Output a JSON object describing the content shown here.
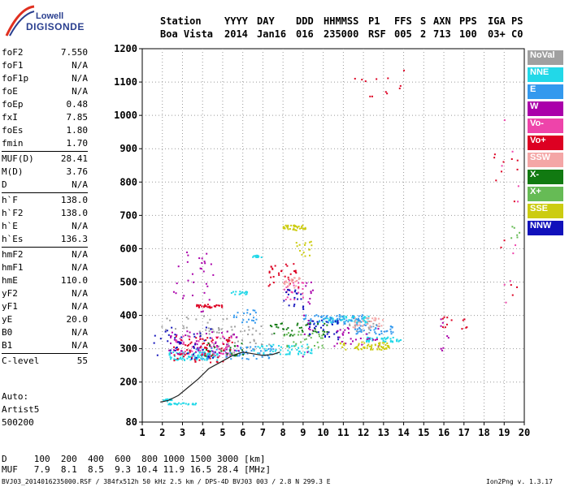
{
  "logo": {
    "line1": "Lowell",
    "line2": "DIGISONDE"
  },
  "header": {
    "cols": [
      {
        "top": "Station",
        "bottom": "Boa Vista"
      },
      {
        "top": "YYYY",
        "bottom": "2014"
      },
      {
        "top": "DAY",
        "bottom": "Jan16"
      },
      {
        "top": "DDD",
        "bottom": "016"
      },
      {
        "top": "HHMMSS",
        "bottom": "235000"
      },
      {
        "top": "P1",
        "bottom": "RSF"
      },
      {
        "top": "FFS",
        "bottom": "005"
      },
      {
        "top": "S",
        "bottom": "2"
      },
      {
        "top": "AXN",
        "bottom": "713"
      },
      {
        "top": "PPS",
        "bottom": "100"
      },
      {
        "top": "IGA",
        "bottom": "03+"
      },
      {
        "top": "PS",
        "bottom": "C0"
      }
    ]
  },
  "params": {
    "groups": [
      [
        {
          "k": "foF2",
          "v": "7.550"
        },
        {
          "k": "foF1",
          "v": "N/A"
        },
        {
          "k": "foF1p",
          "v": "N/A"
        },
        {
          "k": "foE",
          "v": "N/A"
        },
        {
          "k": "foEp",
          "v": "0.48"
        },
        {
          "k": "fxI",
          "v": "7.85"
        },
        {
          "k": "foEs",
          "v": "1.80"
        },
        {
          "k": "fmin",
          "v": "1.70"
        }
      ],
      [
        {
          "k": "MUF(D)",
          "v": "28.41"
        },
        {
          "k": "M(D)",
          "v": "3.76"
        },
        {
          "k": "D",
          "v": "N/A"
        }
      ],
      [
        {
          "k": "h`F",
          "v": "138.0"
        },
        {
          "k": "h`F2",
          "v": "138.0"
        },
        {
          "k": "h`E",
          "v": "N/A"
        },
        {
          "k": "h`Es",
          "v": "136.3"
        }
      ],
      [
        {
          "k": "hmF2",
          "v": "N/A"
        },
        {
          "k": "hmF1",
          "v": "N/A"
        },
        {
          "k": "hmE",
          "v": "110.0"
        },
        {
          "k": "yF2",
          "v": "N/A"
        },
        {
          "k": "yF1",
          "v": "N/A"
        },
        {
          "k": "yE",
          "v": "20.0"
        },
        {
          "k": "B0",
          "v": "N/A"
        },
        {
          "k": "B1",
          "v": "N/A"
        }
      ],
      [
        {
          "k": "C-level",
          "v": "55"
        }
      ]
    ]
  },
  "notes": [
    "Auto:",
    "Artist5",
    "500200"
  ],
  "bottom": {
    "d_line": "D     100  200  400  600  800 1000 1500 3000 [km]",
    "muf_line": "MUF   7.9  8.1  8.5  9.3 10.4 11.9 16.5 28.4 [MHz]"
  },
  "footer": {
    "left": "BVJ03_2014016235000.RSF / 384fx512h 50 kHz 2.5 km / DPS-4D BVJ03 003 / 2.8 N 299.3 E",
    "right": "Ion2Png v. 1.3.17"
  },
  "legend": [
    {
      "label": "NoVal",
      "color": "#a0a0a0"
    },
    {
      "label": "NNE",
      "color": "#22d8e8"
    },
    {
      "label": "E",
      "color": "#3399ee"
    },
    {
      "label": "W",
      "color": "#aa00aa"
    },
    {
      "label": "Vo-",
      "color": "#ee44aa"
    },
    {
      "label": "Vo+",
      "color": "#dd0022"
    },
    {
      "label": "SSW",
      "color": "#f4a6a6"
    },
    {
      "label": "X-",
      "color": "#117a11"
    },
    {
      "label": "X+",
      "color": "#66bb55"
    },
    {
      "label": "SSE",
      "color": "#cccc11"
    },
    {
      "label": "NNW",
      "color": "#1111bb"
    }
  ],
  "chart_data": {
    "type": "scatter",
    "xlabel": "",
    "ylabel": "",
    "xlim": [
      1,
      20
    ],
    "ylim": [
      80,
      1200
    ],
    "xticks": [
      1,
      2,
      3,
      4,
      5,
      6,
      7,
      8,
      9,
      10,
      11,
      12,
      13,
      14,
      15,
      16,
      17,
      18,
      19,
      20
    ],
    "yticks": [
      80,
      200,
      300,
      400,
      500,
      600,
      700,
      800,
      900,
      1000,
      1100,
      1200
    ],
    "grid": true,
    "trace": {
      "name": "",
      "color": "#222222",
      "points": [
        [
          1.9,
          140
        ],
        [
          2.3,
          145
        ],
        [
          2.8,
          160
        ],
        [
          3.3,
          185
        ],
        [
          3.8,
          210
        ],
        [
          4.3,
          240
        ],
        [
          4.9,
          260
        ],
        [
          5.5,
          280
        ],
        [
          6.0,
          290
        ],
        [
          6.5,
          285
        ],
        [
          7.0,
          280
        ],
        [
          7.5,
          283
        ],
        [
          7.85,
          290
        ]
      ]
    },
    "series": [
      {
        "name": "NoVal",
        "color": "#a0a0a0",
        "clusters": [
          [
            3.5,
            370,
            4.0,
            60,
            30
          ],
          [
            12.0,
            370,
            1.5,
            40,
            20
          ],
          [
            6.0,
            330,
            3.0,
            80,
            40
          ]
        ]
      },
      {
        "name": "NNE",
        "color": "#22d8e8",
        "clusters": [
          [
            3.5,
            280,
            2.5,
            25,
            90
          ],
          [
            3.0,
            137,
            1.5,
            5,
            25
          ],
          [
            2.2,
            148,
            0.5,
            8,
            15
          ],
          [
            8.0,
            300,
            3.0,
            30,
            60
          ],
          [
            11.0,
            390,
            2.5,
            20,
            60
          ],
          [
            5.8,
            470,
            0.8,
            10,
            15
          ],
          [
            6.7,
            580,
            0.5,
            10,
            12
          ],
          [
            13.0,
            330,
            1.8,
            15,
            40
          ]
        ]
      },
      {
        "name": "E",
        "color": "#3399ee",
        "clusters": [
          [
            5.5,
            290,
            4.0,
            40,
            80
          ],
          [
            10.5,
            390,
            3.0,
            30,
            70
          ],
          [
            12.5,
            360,
            2.0,
            30,
            40
          ],
          [
            6.0,
            400,
            1.5,
            40,
            20
          ]
        ]
      },
      {
        "name": "W",
        "color": "#aa00aa",
        "clusters": [
          [
            4.0,
            320,
            3.5,
            70,
            70
          ],
          [
            3.5,
            510,
            2.0,
            200,
            30
          ],
          [
            9.2,
            400,
            0.5,
            250,
            20
          ],
          [
            11.5,
            340,
            2.5,
            60,
            30
          ],
          [
            16.0,
            350,
            0.5,
            120,
            8
          ]
        ]
      },
      {
        "name": "Vo-",
        "color": "#ee44aa",
        "clusters": [
          [
            4.0,
            310,
            3.0,
            60,
            50
          ],
          [
            8.5,
            480,
            1.0,
            60,
            25
          ],
          [
            19.2,
            720,
            1.0,
            600,
            10
          ]
        ]
      },
      {
        "name": "Vo+",
        "color": "#dd0022",
        "clusters": [
          [
            4.0,
            300,
            3.0,
            80,
            70
          ],
          [
            4.3,
            430,
            1.3,
            10,
            30
          ],
          [
            8.0,
            520,
            1.5,
            80,
            30
          ],
          [
            13.0,
            1100,
            3.0,
            100,
            12
          ],
          [
            16.5,
            390,
            1.5,
            60,
            12
          ],
          [
            19.0,
            700,
            1.3,
            500,
            14
          ]
        ]
      },
      {
        "name": "SSW",
        "color": "#f4a6a6",
        "clusters": [
          [
            8.5,
            500,
            1.0,
            30,
            25
          ],
          [
            12.2,
            380,
            1.5,
            30,
            30
          ]
        ]
      },
      {
        "name": "X-",
        "color": "#117a11",
        "clusters": [
          [
            8.8,
            360,
            3.0,
            40,
            40
          ],
          [
            5.0,
            300,
            2.0,
            40,
            20
          ]
        ]
      },
      {
        "name": "X+",
        "color": "#66bb55",
        "clusters": [
          [
            9.0,
            330,
            2.0,
            50,
            30
          ],
          [
            19.5,
            650,
            0.5,
            40,
            6
          ]
        ]
      },
      {
        "name": "SSE",
        "color": "#cccc11",
        "clusters": [
          [
            8.5,
            665,
            1.2,
            15,
            40
          ],
          [
            12.0,
            310,
            2.5,
            25,
            60
          ],
          [
            9.0,
            600,
            0.8,
            50,
            15
          ]
        ]
      },
      {
        "name": "NNW",
        "color": "#1111bb",
        "clusters": [
          [
            3.0,
            320,
            3.0,
            100,
            40
          ],
          [
            10.0,
            360,
            1.5,
            60,
            30
          ],
          [
            8.5,
            450,
            1.0,
            60,
            20
          ]
        ]
      }
    ]
  }
}
